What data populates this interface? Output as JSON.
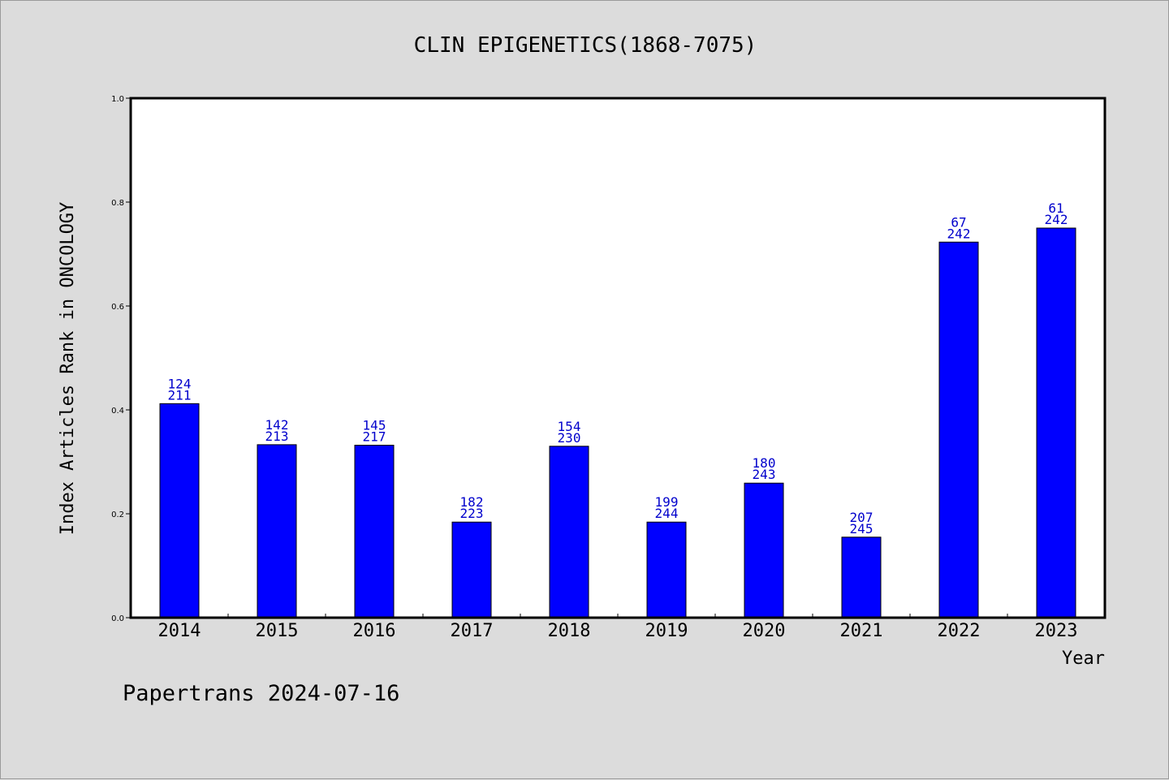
{
  "chart_data": {
    "type": "bar",
    "title": "CLIN EPIGENETICS(1868-7075)",
    "xlabel": "Year",
    "ylabel": "Index Articles Rank in ONCOLOGY",
    "ylim": [
      0,
      1.0
    ],
    "yticks": [
      "0.0",
      "0.2",
      "0.4",
      "0.6",
      "0.8",
      "1.0"
    ],
    "categories": [
      "2014",
      "2015",
      "2016",
      "2017",
      "2018",
      "2019",
      "2020",
      "2021",
      "2022",
      "2023"
    ],
    "values": [
      0.412,
      0.333,
      0.332,
      0.184,
      0.33,
      0.184,
      0.259,
      0.155,
      0.723,
      0.75
    ],
    "labels_top": [
      "124",
      "142",
      "145",
      "182",
      "154",
      "199",
      "180",
      "207",
      "67",
      "61"
    ],
    "labels_bottom": [
      "211",
      "213",
      "217",
      "223",
      "230",
      "244",
      "243",
      "245",
      "242",
      "242"
    ],
    "grid": false,
    "colors": {
      "bar": "#0000ff",
      "label": "#0000cc",
      "background": "#dcdcdc",
      "plot": "#ffffff"
    }
  },
  "footer": "Papertrans 2024-07-16"
}
